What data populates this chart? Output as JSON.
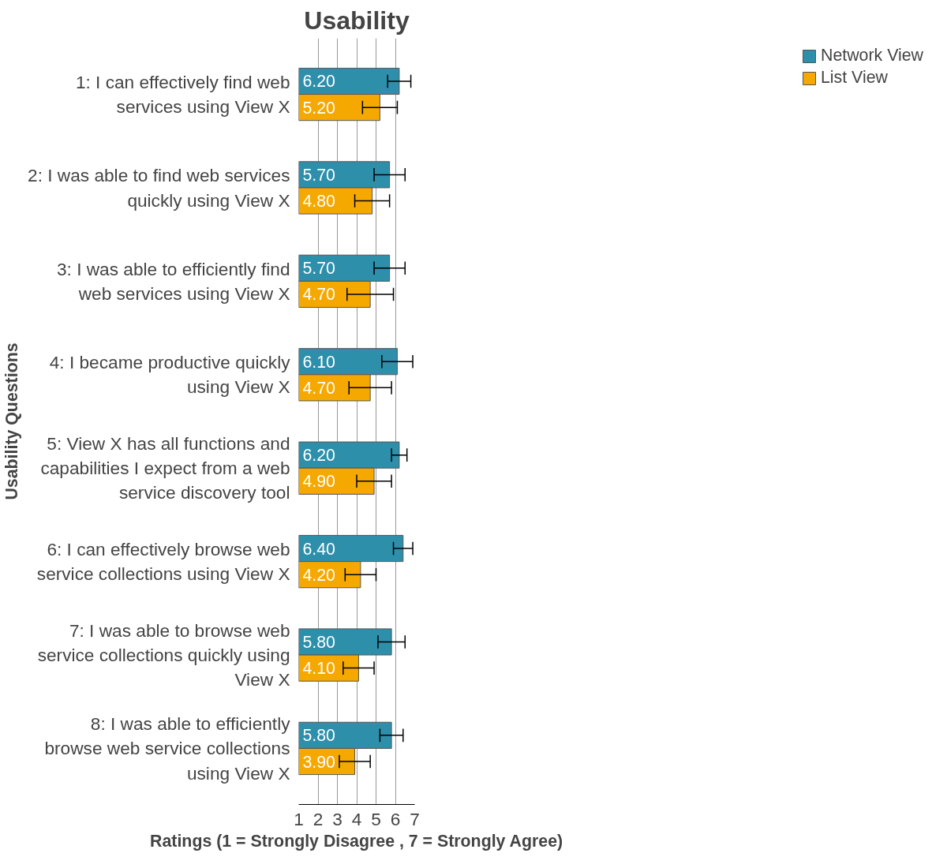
{
  "chart_data": {
    "type": "bar",
    "orientation": "horizontal",
    "title": "Usability",
    "xlabel": "Ratings (1 = Strongly Disagree , 7 = Strongly Agree)",
    "ylabel": "Usability Questions",
    "categories": [
      "1: I can effectively find web services using View X",
      "2: I was able to find web services quickly using View X",
      "3: I was able to efficiently find web services using View X",
      "4: I became productive quickly using View X",
      "5: View X has all functions and capabilities I expect from a web service discovery tool",
      "6: I can effectively browse web service collections using View X",
      "7: I was able to browse web service collections quickly using View X",
      "8: I was able to efficiently browse web service collections using View X"
    ],
    "series": [
      {
        "name": "Network View",
        "color": "#2e8fab",
        "values": [
          6.2,
          5.7,
          5.7,
          6.1,
          6.2,
          6.4,
          5.8,
          5.8
        ],
        "value_labels": [
          "6.20",
          "5.70",
          "5.70",
          "6.10",
          "6.20",
          "6.40",
          "5.80",
          "5.80"
        ],
        "errors": [
          0.6,
          0.8,
          0.8,
          0.8,
          0.4,
          0.5,
          0.7,
          0.6
        ]
      },
      {
        "name": "List View",
        "color": "#f5a800",
        "values": [
          5.2,
          4.8,
          4.7,
          4.7,
          4.9,
          4.2,
          4.1,
          3.9
        ],
        "value_labels": [
          "5.20",
          "4.80",
          "4.70",
          "4.70",
          "4.90",
          "4.20",
          "4.10",
          "3.90"
        ],
        "errors": [
          0.9,
          0.9,
          1.2,
          1.1,
          0.9,
          0.8,
          0.8,
          0.8
        ]
      }
    ],
    "xlim": [
      1,
      7
    ],
    "xticks": [
      1,
      2,
      3,
      4,
      5,
      6,
      7
    ],
    "grid": "x",
    "legend": "right"
  }
}
